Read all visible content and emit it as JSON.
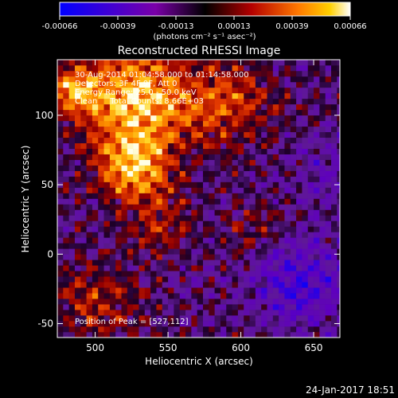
{
  "chart_data": {
    "type": "heatmap",
    "title": "Reconstructed RHESSI Image",
    "xlabel": "Heliocentric X (arcsec)",
    "ylabel": "Heliocentric Y (arcsec)",
    "xlim": [
      474,
      668
    ],
    "ylim": [
      -60,
      140
    ],
    "x_ticks": [
      500,
      550,
      600,
      650
    ],
    "y_ticks": [
      -50,
      0,
      50,
      100
    ],
    "colorbar": {
      "ticks": [
        "-0.00066",
        "-0.00039",
        "-0.00013",
        "0.00013",
        "0.00039",
        "0.00066"
      ],
      "range": [
        -0.00066,
        0.00066
      ],
      "units_label": "(photons cm⁻² s⁻¹ asec⁻²)"
    },
    "annotations": [
      "30-Aug-2014 01:04:58.000 to 01:14:58.000",
      "Detectors: 3F 4F 9F, Att 0",
      "Energy Range: 25.0 - 50.0 keV",
      "Clean     Total Counts: 8.66E+03"
    ],
    "peak_label": "Position of Peak = [527,112]",
    "peak": [
      527,
      112
    ],
    "sources": [
      {
        "x": 527,
        "y": 112,
        "amp": 1.0,
        "sigma": 26
      },
      {
        "x": 527,
        "y": 62,
        "amp": 0.85,
        "sigma": 18
      },
      {
        "x": 590,
        "y": 108,
        "amp": 0.55,
        "sigma": 22
      },
      {
        "x": 485,
        "y": 118,
        "amp": 0.7,
        "sigma": 12
      },
      {
        "x": 545,
        "y": 20,
        "amp": 0.35,
        "sigma": 16
      },
      {
        "x": 500,
        "y": -35,
        "amp": 0.45,
        "sigma": 20
      },
      {
        "x": 610,
        "y": 20,
        "amp": 0.3,
        "sigma": 14
      },
      {
        "x": 640,
        "y": -20,
        "amp": -0.55,
        "sigma": 22
      },
      {
        "x": 660,
        "y": 60,
        "amp": -0.25,
        "sigma": 18
      }
    ]
  },
  "footer": {
    "timestamp": "24-Jan-2017 18:51"
  }
}
